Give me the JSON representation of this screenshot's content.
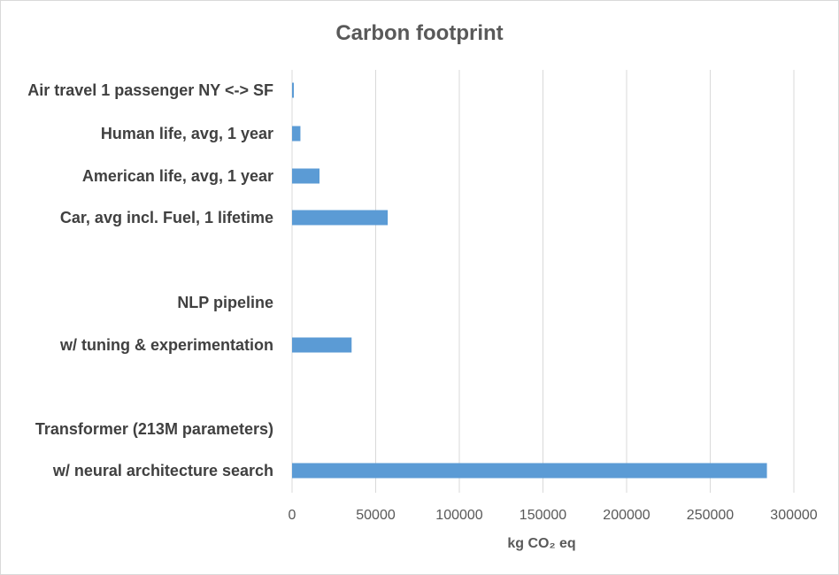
{
  "chart_data": {
    "type": "bar",
    "orientation": "horizontal",
    "title": "Carbon footprint",
    "xlabel": "kg CO₂ eq",
    "ylabel": "",
    "xlim": [
      0,
      300000
    ],
    "xticks": [
      0,
      50000,
      100000,
      150000,
      200000,
      250000,
      300000
    ],
    "xtick_labels": [
      "0",
      "50000",
      "100000",
      "150000",
      "200000",
      "250000",
      "300000"
    ],
    "grid": true,
    "legend": "none",
    "bar_color": "#5b9bd5",
    "categories": [
      "Air travel 1 passenger NY <-> SF",
      "Human life, avg, 1 year",
      "American life, avg, 1 year",
      "Car, avg incl. Fuel, 1 lifetime",
      "NLP pipeline",
      "w/ tuning & experimentation",
      "Transformer (213M parameters)",
      "w/ neural architecture search"
    ],
    "values": [
      900,
      5000,
      16400,
      57200,
      null,
      35600,
      null,
      283900
    ]
  }
}
